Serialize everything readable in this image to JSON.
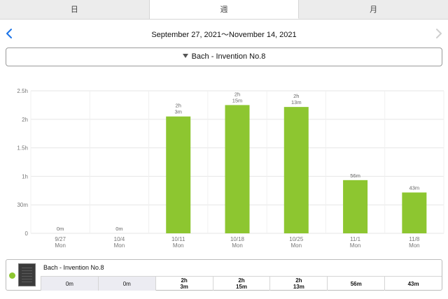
{
  "tabs": [
    {
      "label": "日",
      "active": false
    },
    {
      "label": "週",
      "active": true
    },
    {
      "label": "月",
      "active": false
    }
  ],
  "nav": {
    "date_range": "September 27, 2021〜November 14, 2021",
    "prev_icon": "chevron-left-icon",
    "next_icon": "chevron-right-icon",
    "prev_color": "#1a73e8",
    "next_color": "#cfcfcf"
  },
  "selector": {
    "label": "Bach - Invention No.8",
    "icon": "triangle-down-icon"
  },
  "chart_data": {
    "type": "bar",
    "categories": [
      "9/27\nMon",
      "10/4\nMon",
      "10/11\nMon",
      "10/18\nMon",
      "10/25\nMon",
      "11/1\nMon",
      "11/8\nMon"
    ],
    "values_minutes": [
      0,
      0,
      123,
      135,
      133,
      56,
      43
    ],
    "data_labels": [
      "0m",
      "0m",
      "2h\n3m",
      "2h\n15m",
      "2h\n13m",
      "56m",
      "43m"
    ],
    "y_ticks": [
      {
        "value": 0,
        "label": "0"
      },
      {
        "value": 30,
        "label": "30m"
      },
      {
        "value": 60,
        "label": "1h"
      },
      {
        "value": 90,
        "label": "1.5h"
      },
      {
        "value": 120,
        "label": "2h"
      },
      {
        "value": 150,
        "label": "2.5h"
      }
    ],
    "ylim": [
      0,
      150
    ],
    "bar_color": "#8dc630",
    "grid": "horizontal"
  },
  "legend": {
    "title": "Bach - Invention No.8",
    "color": "#8dc630",
    "values": [
      "0m",
      "0m",
      "2h\n3m",
      "2h\n15m",
      "2h\n13m",
      "56m",
      "43m"
    ]
  }
}
